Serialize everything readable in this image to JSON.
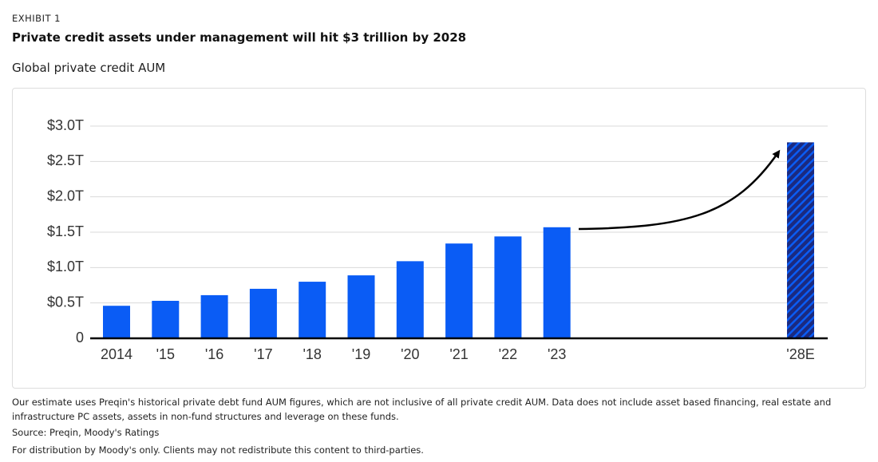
{
  "header": {
    "label": "EXHIBIT 1",
    "title": "Private credit assets under management will hit $3 trillion by 2028"
  },
  "chart_data": {
    "type": "bar",
    "title": "Global private credit AUM",
    "categories": [
      "2014",
      "'15",
      "'16",
      "'17",
      "'18",
      "'19",
      "'20",
      "'21",
      "'22",
      "'23",
      "'28E"
    ],
    "values": [
      0.46,
      0.53,
      0.61,
      0.7,
      0.8,
      0.89,
      1.09,
      1.34,
      1.44,
      1.57,
      2.77
    ],
    "bar_styles": [
      "solid",
      "solid",
      "solid",
      "solid",
      "solid",
      "solid",
      "solid",
      "solid",
      "solid",
      "solid",
      "hatched"
    ],
    "color": "#0a5cf5",
    "hatch_color": "#1b2a80",
    "ylim": [
      0,
      3.0
    ],
    "yticks": [
      0,
      {
        "value": 0.5,
        "label": "$0.5T"
      },
      {
        "value": 1.0,
        "label": "$1.0T"
      },
      {
        "value": 1.5,
        "label": "$1.5T"
      },
      {
        "value": 2.0,
        "label": "$2.0T"
      },
      {
        "value": 2.5,
        "label": "$2.5T"
      },
      {
        "value": 3.0,
        "label": "$3.0T"
      }
    ],
    "grid": true
  },
  "footer": {
    "note": "Our estimate uses Preqin's historical private debt fund AUM figures, which are not inclusive of all private credit AUM. Data does not include asset based financing, real estate and infrastructure PC assets, assets in non-fund structures and leverage on these funds.",
    "source": "Source: Preqin, Moody's Ratings",
    "distribution": "For distribution by Moody's only. Clients may not redistribute this content to third-parties."
  }
}
